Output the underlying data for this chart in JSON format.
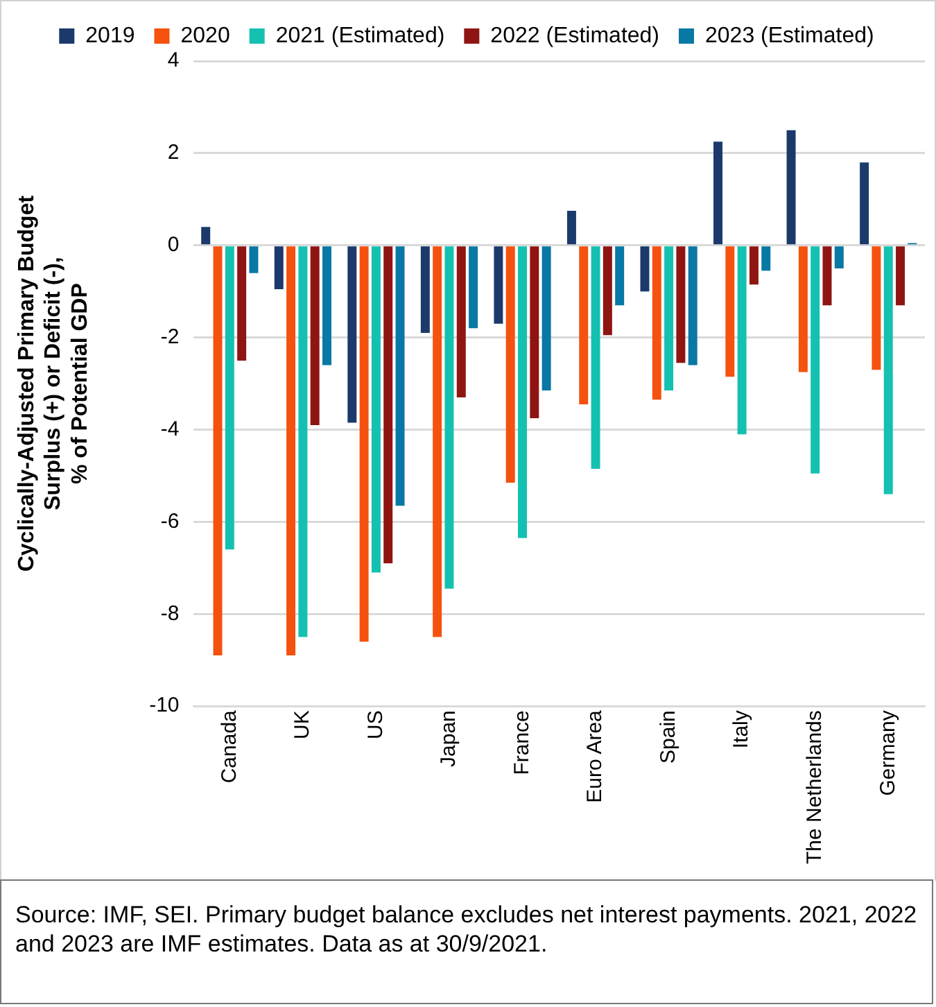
{
  "chart_data": {
    "type": "bar",
    "ylabel": "Cyclically-Adjusted Primary Budget\nSurplus (+) or Deficit (-),\n% of Potential GDP",
    "categories": [
      "Canada",
      "UK",
      "US",
      "Japan",
      "France",
      "Euro Area",
      "Spain",
      "Italy",
      "The Netherlands",
      "Germany"
    ],
    "series": [
      {
        "name": "2019",
        "color": "#1b3a6b",
        "values": [
          0.4,
          -0.95,
          -3.85,
          -1.9,
          -1.7,
          0.75,
          -1.0,
          2.25,
          2.5,
          1.8
        ]
      },
      {
        "name": "2020",
        "color": "#f4520e",
        "values": [
          -8.9,
          -8.9,
          -8.6,
          -8.5,
          -5.15,
          -3.45,
          -3.35,
          -2.85,
          -2.75,
          -2.7
        ]
      },
      {
        "name": "2021 (Estimated)",
        "color": "#14c1b0",
        "values": [
          -6.6,
          -8.5,
          -7.1,
          -7.45,
          -6.35,
          -4.85,
          -3.15,
          -4.1,
          -4.95,
          -5.4
        ]
      },
      {
        "name": "2022 (Estimated)",
        "color": "#8f1512",
        "values": [
          -2.5,
          -3.9,
          -6.9,
          -3.3,
          -3.75,
          -1.95,
          -2.55,
          -0.85,
          -1.3,
          -1.3
        ]
      },
      {
        "name": "2023 (Estimated)",
        "color": "#0878a4",
        "values": [
          -0.6,
          -2.6,
          -5.65,
          -1.8,
          -3.15,
          -1.3,
          -2.6,
          -0.55,
          -0.5,
          0.05
        ]
      }
    ],
    "ylim": [
      -10,
      4
    ],
    "yticks": [
      -10,
      -8,
      -6,
      -4,
      -2,
      0,
      2,
      4
    ],
    "grid": "y",
    "legend": "top",
    "annotations": [
      "Source: IMF, SEI. Primary budget balance excludes net interest payments. 2021, 2022 and 2023 are IMF estimates. Data as at 30/9/2021."
    ]
  }
}
